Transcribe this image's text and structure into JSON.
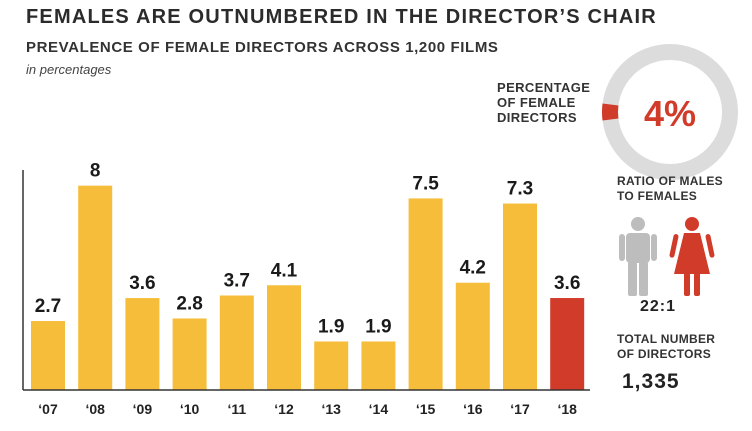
{
  "chart_data": {
    "type": "bar",
    "title": "FEMALES ARE OUTNUMBERED IN THE DIRECTOR’S CHAIR",
    "subtitle": "PREVALENCE OF FEMALE DIRECTORS ACROSS 1,200 FILMS",
    "units": "in percentages",
    "categories": [
      "‘07",
      "‘08",
      "‘09",
      "‘10",
      "‘11",
      "‘12",
      "‘13",
      "‘14",
      "‘15",
      "‘16",
      "‘17",
      "‘18"
    ],
    "values": [
      2.7,
      8,
      3.6,
      2.8,
      3.7,
      4.1,
      1.9,
      1.9,
      7.5,
      4.2,
      7.3,
      3.6
    ],
    "value_labels": [
      "2.7",
      "8",
      "3.6",
      "2.8",
      "3.7",
      "4.1",
      "1.9",
      "1.9",
      "7.5",
      "4.2",
      "7.3",
      "3.6"
    ],
    "ylim": [
      0,
      9.2
    ],
    "grid": false,
    "colors": {
      "default": "#f6bd3b",
      "highlight": "#d13b2a",
      "highlight_index": 11
    }
  },
  "donut": {
    "label_lines": [
      "PERCENTAGE",
      "OF FEMALE",
      "DIRECTORS"
    ],
    "value_text": "4%",
    "fraction": 0.04,
    "track_color": "#dcdcdc",
    "fill_color": "#d13b2a"
  },
  "ratio": {
    "label_lines": [
      "RATIO OF MALES",
      "TO FEMALES"
    ],
    "value": "22:1",
    "male_color": "#bdbdbd",
    "female_color": "#d13b2a",
    "icons": [
      "male-figure-icon",
      "female-figure-icon"
    ]
  },
  "total": {
    "label_lines": [
      "TOTAL NUMBER",
      "OF DIRECTORS"
    ],
    "value": "1,335"
  }
}
